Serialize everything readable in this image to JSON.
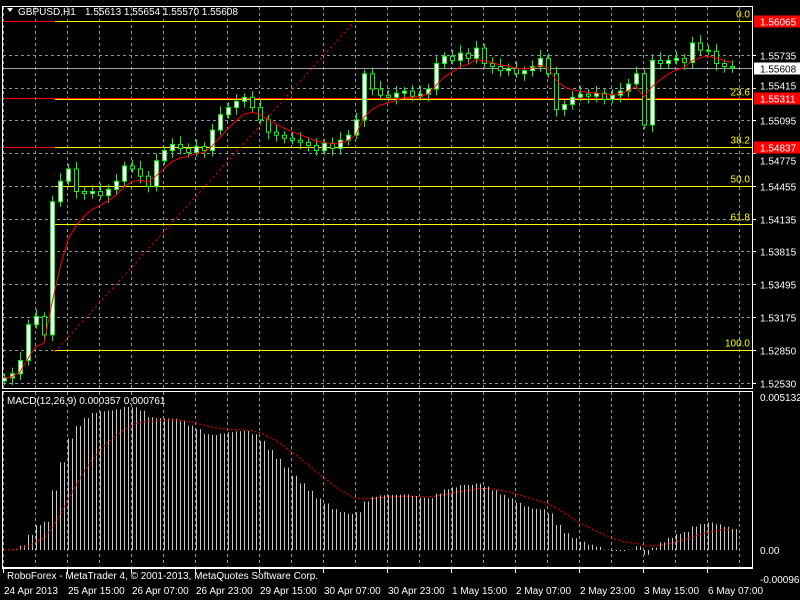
{
  "header": {
    "symbol": "GBPUSD,H1",
    "ohlc": "1.55613 1.55654 1.55570 1.55608"
  },
  "footer": {
    "copyright": "RoboForex - MetaTrader 4, © 2001-2013, MetaQuotes Software Corp."
  },
  "colors": {
    "background": "#000000",
    "candle": "#00ff00",
    "ma": "#ff0000",
    "fib": "#ffff00",
    "hline": "#ff0000",
    "grid": "#8c96a0",
    "bid_line": "#a0a0a0"
  },
  "chart_data": [
    {
      "type": "candlestick",
      "title": "GBPUSD,H1",
      "ylim": [
        1.5253,
        1.56065
      ],
      "y_ticks": [
        "1.55735",
        "1.55415",
        "1.55095",
        "1.54775",
        "1.54455",
        "1.54135",
        "1.53815",
        "1.53495",
        "1.53175",
        "1.52850",
        "1.52530"
      ],
      "x_ticks": [
        "24 Apr 2013",
        "25 Apr 15:00",
        "26 Apr 07:00",
        "26 Apr 23:00",
        "29 Apr 15:00",
        "30 Apr 07:00",
        "30 Apr 23:00",
        "1 May 15:00",
        "2 May 07:00",
        "2 May 23:00",
        "3 May 15:00",
        "6 May 07:00"
      ],
      "grid": true,
      "close": [
        1.5258,
        1.5262,
        1.5275,
        1.531,
        1.5318,
        1.53,
        1.543,
        1.545,
        1.5462,
        1.544,
        1.5438,
        1.544,
        1.5436,
        1.5442,
        1.545,
        1.5465,
        1.5462,
        1.5455,
        1.5445,
        1.547,
        1.548,
        1.5486,
        1.5482,
        1.5478,
        1.5484,
        1.548,
        1.55,
        1.5515,
        1.5522,
        1.5528,
        1.5532,
        1.5522,
        1.551,
        1.5498,
        1.5495,
        1.5492,
        1.549,
        1.5488,
        1.5485,
        1.548,
        1.5487,
        1.5482,
        1.549,
        1.5495,
        1.551,
        1.5555,
        1.554,
        1.5534,
        1.5532,
        1.5536,
        1.5538,
        1.5533,
        1.5535,
        1.554,
        1.5565,
        1.5572,
        1.5568,
        1.5575,
        1.557,
        1.558,
        1.5565,
        1.5562,
        1.5558,
        1.556,
        1.5555,
        1.5558,
        1.5562,
        1.557,
        1.5555,
        1.552,
        1.5525,
        1.5532,
        1.5535,
        1.5533,
        1.5536,
        1.553,
        1.5534,
        1.5538,
        1.5545,
        1.5555,
        1.5505,
        1.5568,
        1.5565,
        1.5568,
        1.557,
        1.5566,
        1.5585,
        1.5578,
        1.5577,
        1.5565,
        1.5562,
        1.55608
      ],
      "bid": {
        "value": 1.55608,
        "label": "1.55608"
      },
      "horizontal_lines": [
        {
          "value": 1.56065,
          "label": "1.56065"
        },
        {
          "value": 1.55311,
          "label": "1.55311"
        },
        {
          "value": 1.54837,
          "label": "1.54837"
        }
      ],
      "fibonacci": {
        "from": 1.5285,
        "to": 1.56065,
        "levels": [
          {
            "level": 0.0,
            "label": "0.0",
            "value": 1.56065
          },
          {
            "level": 23.6,
            "label": "23.6",
            "value": 1.55306
          },
          {
            "level": 38.2,
            "label": "38.2",
            "value": 1.54837
          },
          {
            "level": 50.0,
            "label": "50.0",
            "value": 1.54457
          },
          {
            "level": 61.8,
            "label": "61.8",
            "value": 1.54078
          },
          {
            "level": 100.0,
            "label": "100.0",
            "value": 1.5285
          }
        ]
      }
    },
    {
      "type": "bar",
      "title": "MACD(12,26,9) 0.000357 0.000761",
      "ylim": [
        -0.000968,
        0.005132
      ],
      "y_ticks": [
        "0.005132",
        "0.00",
        "-0.000968"
      ],
      "params": [
        12,
        26,
        9
      ],
      "main": 0.000357,
      "signal": 0.000761
    }
  ]
}
